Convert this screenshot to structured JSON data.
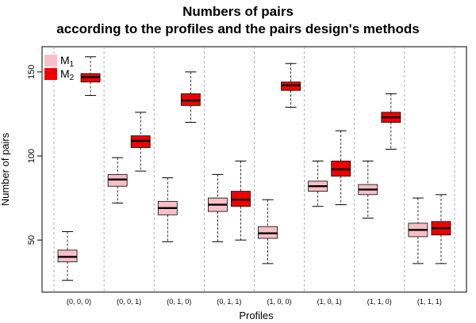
{
  "chart_data": {
    "type": "boxplot",
    "title": [
      "Numbers of pairs",
      "according to the profiles and the pairs design's methods"
    ],
    "xlabel": "Profiles",
    "ylabel": "Number of pairs",
    "ylim": [
      19,
      165
    ],
    "yticks": [
      50,
      100,
      150
    ],
    "categories": [
      "(0, 0, 0)",
      "(0, 0, 1)",
      "(0, 1, 0)",
      "(0, 1, 1)",
      "(1, 0, 0)",
      "(1, 0, 1)",
      "(1, 1, 0)",
      "(1, 1, 1)"
    ],
    "legend": {
      "position": "top-left",
      "items": [
        "M1",
        "M2"
      ]
    },
    "series": [
      {
        "name": "M1",
        "color": "#f9bfc6",
        "boxes": [
          {
            "min": 26,
            "q1": 37,
            "median": 40,
            "q3": 44,
            "max": 55
          },
          {
            "min": 72,
            "q1": 82,
            "median": 86,
            "q3": 89,
            "max": 99
          },
          {
            "min": 49,
            "q1": 65,
            "median": 69,
            "q3": 73,
            "max": 87
          },
          {
            "min": 49,
            "q1": 67,
            "median": 71,
            "q3": 75,
            "max": 89
          },
          {
            "min": 36,
            "q1": 51,
            "median": 54,
            "q3": 58,
            "max": 74
          },
          {
            "min": 70,
            "q1": 79,
            "median": 82,
            "q3": 85,
            "max": 97
          },
          {
            "min": 63,
            "q1": 77,
            "median": 80,
            "q3": 83,
            "max": 97
          },
          {
            "min": 36,
            "q1": 52,
            "median": 56,
            "q3": 60,
            "max": 75
          }
        ]
      },
      {
        "name": "M2",
        "color": "#ee0000",
        "boxes": [
          {
            "min": 136,
            "q1": 144,
            "median": 147,
            "q3": 149,
            "max": 159
          },
          {
            "min": 91,
            "q1": 105,
            "median": 109,
            "q3": 112,
            "max": 126
          },
          {
            "min": 120,
            "q1": 130,
            "median": 133,
            "q3": 137,
            "max": 150
          },
          {
            "min": 50,
            "q1": 70,
            "median": 74,
            "q3": 79,
            "max": 97
          },
          {
            "min": 129,
            "q1": 139,
            "median": 142,
            "q3": 144,
            "max": 155
          },
          {
            "min": 71,
            "q1": 88,
            "median": 92,
            "q3": 97,
            "max": 115
          },
          {
            "min": 104,
            "q1": 120,
            "median": 123,
            "q3": 126,
            "max": 137
          },
          {
            "min": 36,
            "q1": 53,
            "median": 57,
            "q3": 61,
            "max": 77
          }
        ]
      }
    ],
    "grid": "vertical dashed separators between groups"
  }
}
